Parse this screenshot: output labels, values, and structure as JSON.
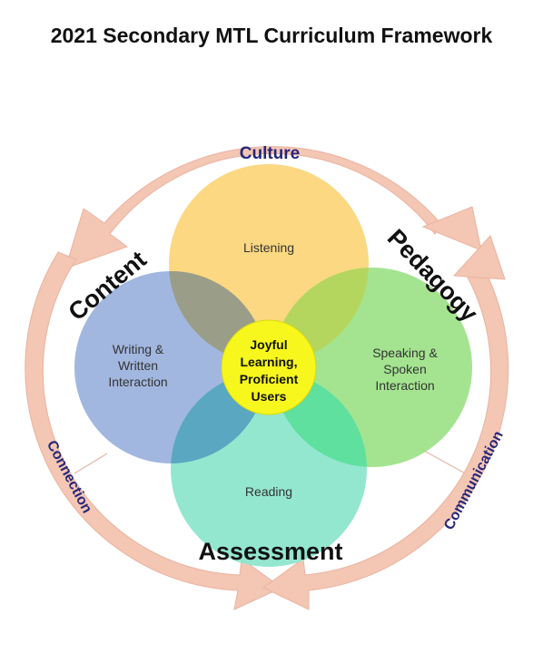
{
  "title": "2021 Secondary MTL Curriculum Framework",
  "ring_labels": {
    "culture": "Culture",
    "connection": "Connection",
    "communication": "Communication"
  },
  "pillars": {
    "content": "Content",
    "pedagogy": "Pedagogy",
    "assessment": "Assessment"
  },
  "skills": {
    "listening": "Listening",
    "writing_line1": "Writing &",
    "writing_line2": "Written",
    "writing_line3": "Interaction",
    "speaking_line1": "Speaking &",
    "speaking_line2": "Spoken",
    "speaking_line3": "Interaction",
    "reading": "Reading"
  },
  "center": {
    "line1": "Joyful",
    "line2": "Learning,",
    "line3": "Proficient",
    "line4": "Users"
  },
  "colors": {
    "arrow": "#f4c6b4",
    "listening": "#fbd67a",
    "writing": "#9db3dd",
    "speaking": "#9fe38a",
    "reading": "#8ee6cc",
    "center": "#f7f71e",
    "ring_text": "#27277a"
  }
}
